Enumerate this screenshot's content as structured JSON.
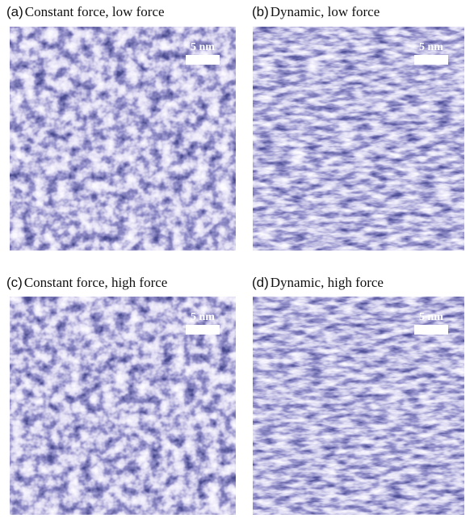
{
  "panels": [
    {
      "label": "(a)",
      "title": "Constant force, low force",
      "scale": "5 nm"
    },
    {
      "label": "(b)",
      "title": "Dynamic, low force",
      "scale": "5 nm"
    },
    {
      "label": "(c)",
      "title": "Constant force, high force",
      "scale": "5 nm"
    },
    {
      "label": "(d)",
      "title": "Dynamic, high force",
      "scale": "5 nm"
    }
  ]
}
